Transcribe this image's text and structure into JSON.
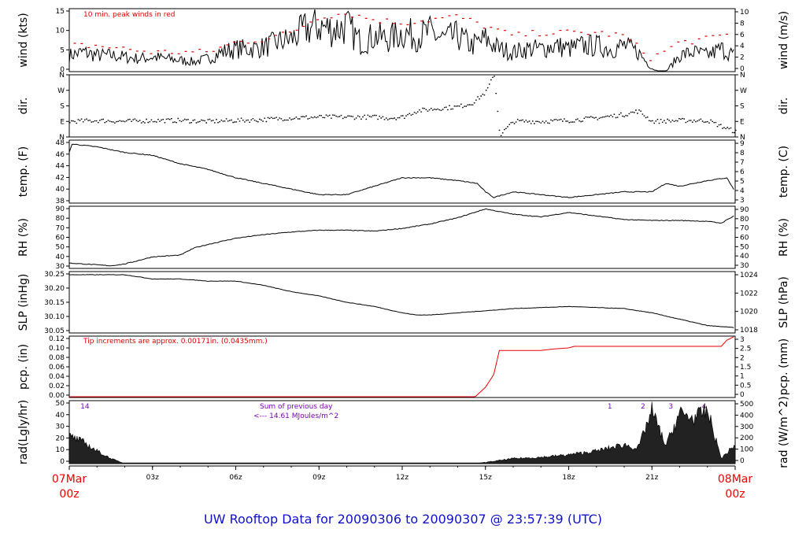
{
  "chart_data": {
    "type": "line",
    "title": "UW Rooftop Data for 20090306  to  20090307 @ 23:57:39  (UTC)",
    "x_axis": {
      "start_label": [
        "07Mar",
        "00z"
      ],
      "end_label": [
        "08Mar",
        "00z"
      ],
      "ticks": [
        "03z",
        "06z",
        "09z",
        "12z",
        "15z",
        "18z",
        "21z"
      ],
      "range_hours": [
        0,
        24
      ]
    },
    "colors": {
      "data": "#000000",
      "note": "#dd0000",
      "precip": "#ee0000",
      "footer": "#1010cc",
      "radnote": "#8000c0",
      "edge": "#ee0000"
    },
    "panels": [
      {
        "id": "wind",
        "left_label": "wind (kts)",
        "right_label": "wind (m/s)",
        "left_ticks": [
          "0",
          "5",
          "10",
          "15"
        ],
        "right_ticks": [
          "0",
          "2",
          "4",
          "6",
          "8",
          "10"
        ],
        "ylim": [
          0,
          19.4
        ],
        "annotation": "10 min. peak winds in red",
        "series": [
          {
            "name": "wind speed",
            "x": [
              0,
              0.5,
              1,
              1.5,
              2,
              2.5,
              3,
              3.5,
              4,
              4.5,
              5,
              5.5,
              6,
              6.5,
              7,
              7.5,
              8,
              8.5,
              9,
              9.5,
              10,
              10.5,
              11,
              11.5,
              12,
              12.5,
              13,
              13.5,
              14,
              14.5,
              15,
              15.5,
              16,
              16.5,
              17,
              17.5,
              18,
              18.5,
              19,
              19.5,
              20,
              20.5,
              21,
              21.25,
              21.5,
              22,
              22.5,
              23,
              23.5,
              24
            ],
            "y": [
              5,
              6,
              5,
              5,
              4.5,
              4,
              4.5,
              4,
              3.5,
              3,
              4,
              6,
              7,
              7,
              7.5,
              9,
              10,
              13,
              14,
              13,
              14,
              9,
              11,
              10,
              12,
              11,
              12,
              10,
              11,
              8,
              10,
              7,
              6,
              7,
              7,
              8,
              7,
              8,
              8,
              7,
              8,
              6,
              1,
              0,
              0,
              5,
              6,
              5,
              7,
              5
            ]
          },
          {
            "name": "10 min peak",
            "x": [
              0,
              1,
              2,
              3,
              4,
              5,
              6,
              7,
              8,
              9,
              10,
              11,
              12,
              13,
              14,
              15,
              16,
              17,
              18,
              19,
              20,
              21,
              22,
              23,
              24
            ],
            "y": [
              8,
              8,
              7,
              6,
              6,
              6,
              9,
              10,
              12,
              17,
              18,
              16,
              15,
              16,
              17,
              14,
              11,
              12,
              12,
              12,
              11,
              4,
              9,
              10,
              12
            ]
          }
        ]
      },
      {
        "id": "dir",
        "left_label": "dir.",
        "right_label": "dir.",
        "left_ticks": [
          "N",
          "E",
          "S",
          "W",
          "N"
        ],
        "right_ticks": [
          "N",
          "E",
          "S",
          "W",
          "N"
        ],
        "ylim": [
          0,
          360
        ],
        "series": [
          {
            "name": "wind direction (deg)",
            "x": [
              0,
              1,
              2,
              3,
              4,
              5,
              6,
              7,
              8,
              9,
              10,
              11,
              11.5,
              12,
              12.5,
              13,
              14,
              14.5,
              15,
              15.3,
              15.5,
              16,
              17,
              18,
              19,
              20,
              20.5,
              21,
              22,
              23,
              23.5,
              24
            ],
            "y": [
              90,
              95,
              90,
              95,
              95,
              90,
              95,
              100,
              110,
              115,
              115,
              115,
              110,
              115,
              150,
              160,
              175,
              195,
              260,
              360,
              10,
              90,
              90,
              95,
              110,
              130,
              150,
              90,
              95,
              95,
              60,
              30
            ]
          }
        ]
      },
      {
        "id": "temp",
        "left_label": "temp. (F)",
        "right_label": "temp. (C)",
        "left_ticks": [
          "38",
          "40",
          "42",
          "44",
          "46",
          "48"
        ],
        "right_ticks": [
          "3",
          "4",
          "5",
          "6",
          "7",
          "8",
          "9"
        ],
        "ylim": [
          37,
          48.2
        ],
        "series": [
          {
            "name": "temperature (F)",
            "x": [
              0,
              0.1,
              1,
              2,
              3,
              4,
              5,
              6,
              7,
              8,
              9,
              10,
              11,
              12,
              13,
              14,
              14.7,
              15,
              15.3,
              16,
              17,
              18,
              19,
              20,
              21,
              21.5,
              22,
              23,
              23.7,
              24
            ],
            "y": [
              46,
              47.5,
              47,
              46,
              45.5,
              44,
              43,
              41.5,
              40.5,
              39.5,
              38.5,
              38.5,
              40,
              41.5,
              41.5,
              41,
              40.5,
              39,
              38,
              39,
              38.5,
              38,
              38.5,
              39,
              39,
              40.5,
              40,
              41,
              41.5,
              39
            ]
          }
        ]
      },
      {
        "id": "rh",
        "left_label": "RH (%)",
        "right_label": "RH (%)",
        "left_ticks": [
          "30",
          "40",
          "50",
          "60",
          "70",
          "80",
          "90"
        ],
        "right_ticks": [
          "30",
          "40",
          "50",
          "60",
          "70",
          "80",
          "90"
        ],
        "ylim": [
          24,
          94
        ],
        "series": [
          {
            "name": "relative humidity (%)",
            "x": [
              0,
              1,
              1.5,
              2,
              2.5,
              3,
              4,
              4.5,
              5,
              6,
              7,
              8,
              9,
              10,
              11,
              12,
              13,
              14,
              15,
              15.5,
              16,
              17,
              18,
              19,
              20,
              21,
              22,
              23,
              23.5,
              24
            ],
            "y": [
              30,
              28,
              27,
              29,
              33,
              37,
              39,
              47,
              51,
              58,
              62,
              65,
              67,
              67,
              66,
              69,
              74,
              81,
              91,
              88,
              85,
              82,
              87,
              83,
              79,
              78,
              78,
              77,
              75,
              84
            ]
          }
        ]
      },
      {
        "id": "slp",
        "left_label": "SLP (inHg)",
        "right_label": "SLP (hPa)",
        "left_ticks": [
          "30.05",
          "30.10",
          "30.15",
          "30.20",
          "30.25"
        ],
        "right_ticks": [
          "1018",
          "1020",
          "1022",
          "1024"
        ],
        "ylim": [
          29.995,
          30.285
        ],
        "series": [
          {
            "name": "sea level pressure (inHg)",
            "x": [
              0,
              1,
              2,
              3,
              4,
              5,
              6,
              7,
              8,
              9,
              10,
              11,
              12,
              12.5,
              13,
              14,
              15,
              16,
              17,
              18,
              19,
              20,
              21,
              22,
              23,
              24
            ],
            "y": [
              30.27,
              30.27,
              30.27,
              30.25,
              30.25,
              30.24,
              30.24,
              30.22,
              30.19,
              30.17,
              30.14,
              30.12,
              30.09,
              30.08,
              30.08,
              30.09,
              30.1,
              30.11,
              30.115,
              30.12,
              30.115,
              30.11,
              30.09,
              30.06,
              30.03,
              30.02
            ]
          }
        ]
      },
      {
        "id": "pcp",
        "left_label": "pcp. (in)",
        "right_label": "pcp. (mm)",
        "left_ticks": [
          "0.00",
          "0.02",
          "0.04",
          "0.06",
          "0.08",
          "0.10",
          "0.12"
        ],
        "right_ticks": [
          "0",
          "0.5",
          "1",
          "1.5",
          "2",
          "2.5",
          "3"
        ],
        "ylim": [
          0,
          0.12
        ],
        "annotation": "Tip increments are approx. 0.00171in. (0.0435mm.)",
        "series": [
          {
            "name": "precipitation (in)",
            "x": [
              0,
              14.6,
              14.8,
              15,
              15.3,
              15.5,
              17,
              17.5,
              18,
              18.2,
              23.5,
              23.7,
              24
            ],
            "y": [
              0,
              0,
              0.01,
              0.02,
              0.045,
              0.092,
              0.092,
              0.095,
              0.097,
              0.1,
              0.1,
              0.112,
              0.12
            ]
          }
        ]
      },
      {
        "id": "rad",
        "left_label": "rad(Lgly/hr)",
        "right_label": "rad (W/m^2)",
        "left_ticks": [
          "0",
          "10",
          "20",
          "30",
          "40",
          "50"
        ],
        "right_ticks": [
          "0",
          "100",
          "200",
          "300",
          "400",
          "500"
        ],
        "ylim": [
          0,
          50
        ],
        "markers": [
          "14",
          "1",
          "2",
          "3",
          "4"
        ],
        "annotation_lines": [
          "Sum of previous day",
          "<--- 14.61 MJoules/m^2"
        ],
        "series": [
          {
            "name": "solar radiation (Lgly/hr)",
            "x": [
              0,
              0.5,
              1,
              1.5,
              2,
              2.5,
              14.5,
              15,
              16,
              17,
              18,
              19,
              20,
              20.5,
              21,
              21.5,
              22,
              22.5,
              23,
              23.5,
              24
            ],
            "y": [
              22,
              17,
              10,
              4,
              0,
              0,
              0,
              1,
              4,
              5,
              7,
              10,
              15,
              12,
              42,
              14,
              40,
              36,
              42,
              4,
              15
            ]
          }
        ]
      }
    ]
  },
  "footer": {
    "title": "UW Rooftop Data for 20090306  to  20090307 @ 23:57:39  (UTC)"
  }
}
